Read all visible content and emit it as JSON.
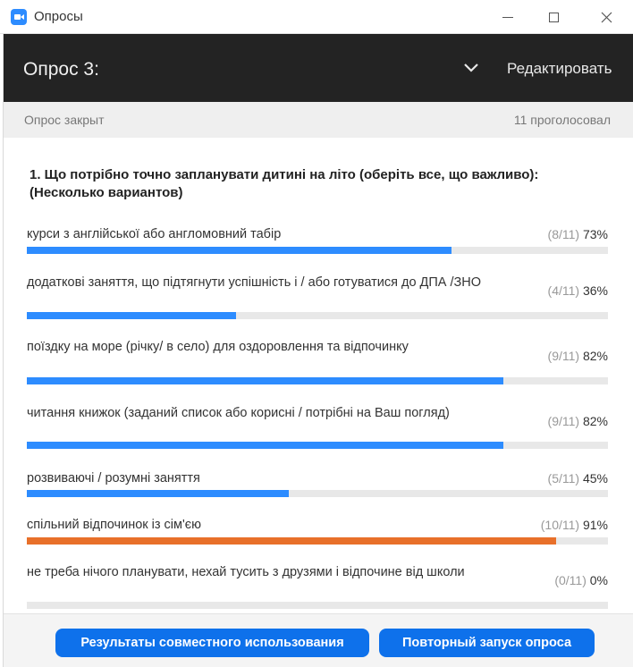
{
  "window": {
    "title": "Опросы"
  },
  "header": {
    "title": "Опрос 3:",
    "edit_label": "Редактировать"
  },
  "status": {
    "state": "Опрос закрыт",
    "votes": "11 проголосовал"
  },
  "question": {
    "text": "1. Що потрібно точно запланувати дитині на літо (оберіть все, що важливо): (Несколько вариантов)",
    "options": [
      {
        "label": "курси з англійської або англомовний табір",
        "count": "(8/11)",
        "percent_label": "73%",
        "percent": 73
      },
      {
        "label": "додаткові заняття, що підтягнути успішність і / або готуватися до ДПА /ЗНО",
        "count": "(4/11)",
        "percent_label": "36%",
        "percent": 36
      },
      {
        "label": "поїздку на море (річку/ в село) для оздоровлення та відпочинку",
        "count": "(9/11)",
        "percent_label": "82%",
        "percent": 82
      },
      {
        "label": "читання книжок (заданий список або корисні / потрібні на Ваш погляд)",
        "count": "(9/11)",
        "percent_label": "82%",
        "percent": 82
      },
      {
        "label": "розвиваючі / розумні заняття",
        "count": "(5/11)",
        "percent_label": "45%",
        "percent": 45
      },
      {
        "label": "спільний відпочинок із сім'єю",
        "count": "(10/11)",
        "percent_label": "91%",
        "percent": 91
      },
      {
        "label": "не треба нічого планувати, нехай тусить з друзями і відпочине від школи",
        "count": "(0/11)",
        "percent_label": "0%",
        "percent": 0
      }
    ]
  },
  "footer": {
    "share_label": "Результаты совместного использования",
    "relaunch_label": "Повторный запуск опроса"
  },
  "colors": {
    "accent": "#2d8cff",
    "highlight": "#e8702a",
    "header_bg": "#232323",
    "button": "#0e71eb"
  }
}
